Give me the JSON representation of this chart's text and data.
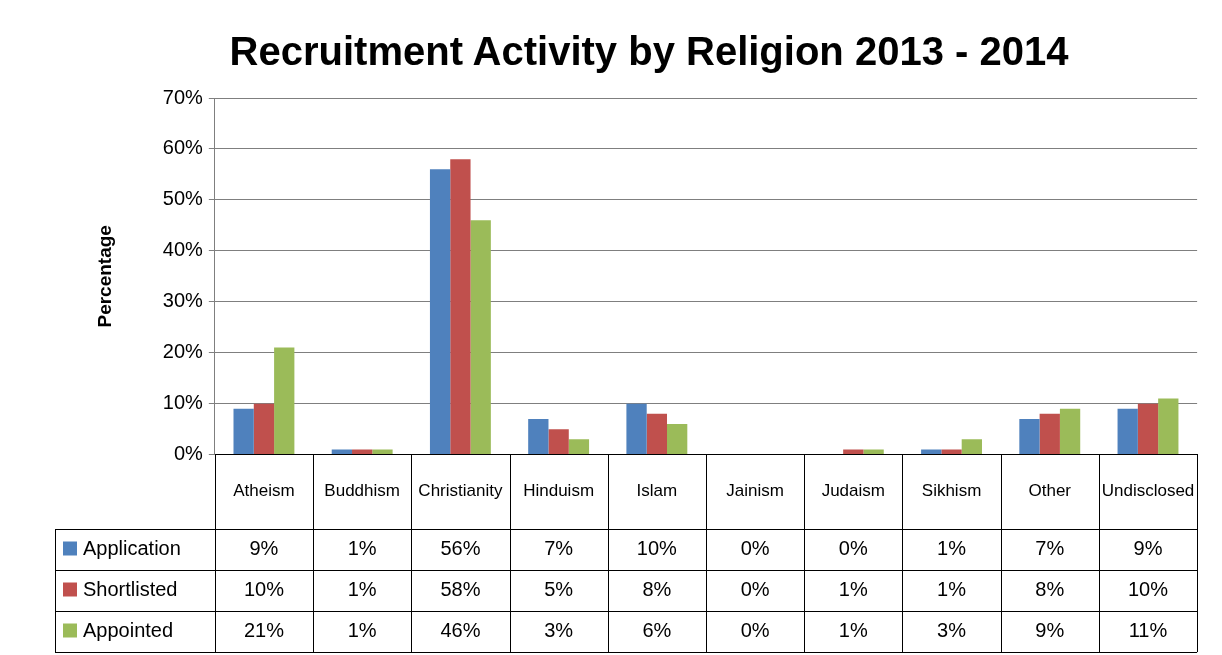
{
  "chart_data": {
    "type": "bar",
    "title": "Recruitment Activity by Religion 2013 - 2014",
    "ylabel": "Percentage",
    "categories": [
      "Atheism",
      "Buddhism",
      "Christianity",
      "Hinduism",
      "Islam",
      "Jainism",
      "Judaism",
      "Sikhism",
      "Other",
      "Undisclosed"
    ],
    "series": [
      {
        "name": "Application",
        "color": "#4f81bd",
        "values": [
          9,
          1,
          56,
          7,
          10,
          0,
          0,
          1,
          7,
          9
        ],
        "value_labels": [
          "9%",
          "1%",
          "56%",
          "7%",
          "10%",
          "0%",
          "0%",
          "1%",
          "7%",
          "9%"
        ]
      },
      {
        "name": "Shortlisted",
        "color": "#c0504d",
        "values": [
          10,
          1,
          58,
          5,
          8,
          0,
          1,
          1,
          8,
          10
        ],
        "value_labels": [
          "10%",
          "1%",
          "58%",
          "5%",
          "8%",
          "0%",
          "1%",
          "1%",
          "8%",
          "10%"
        ]
      },
      {
        "name": "Appointed",
        "color": "#9bbb59",
        "values": [
          21,
          1,
          46,
          3,
          6,
          0,
          1,
          3,
          9,
          11
        ],
        "value_labels": [
          "21%",
          "1%",
          "46%",
          "3%",
          "6%",
          "0%",
          "1%",
          "3%",
          "9%",
          "11%"
        ]
      }
    ],
    "ylim": [
      0,
      70
    ],
    "yticks": [
      {
        "value": 0,
        "label": "0%"
      },
      {
        "value": 10,
        "label": "10%"
      },
      {
        "value": 20,
        "label": "20%"
      },
      {
        "value": 30,
        "label": "30%"
      },
      {
        "value": 40,
        "label": "40%"
      },
      {
        "value": 50,
        "label": "50%"
      },
      {
        "value": 60,
        "label": "60%"
      },
      {
        "value": 70,
        "label": "70%"
      }
    ],
    "grid": "y",
    "legend": "bottom left"
  }
}
